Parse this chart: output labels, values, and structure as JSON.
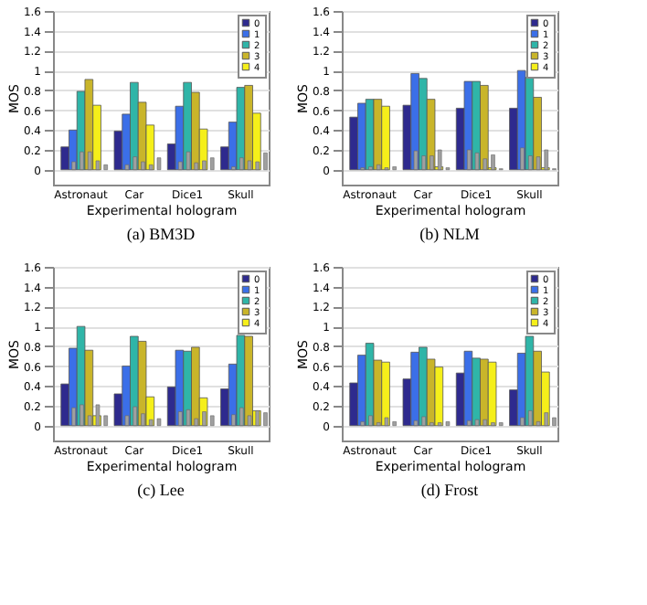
{
  "chart_data": [
    {
      "type": "bar",
      "title": "(a) BM3D",
      "xlabel": "Experimental hologram",
      "ylabel": "MOS",
      "categories": [
        "Astronaut",
        "Car",
        "Dice1",
        "Skull"
      ],
      "ylim": [
        -0.15,
        1.6
      ],
      "yticks": [
        0,
        0.2,
        0.4,
        0.6,
        0.8,
        1,
        1.2,
        1.4,
        1.6
      ],
      "grid": true,
      "legend": "top right",
      "series": [
        {
          "name": "0",
          "color": "#2e2a8e",
          "values": [
            0.23,
            0.39,
            0.26,
            0.23
          ]
        },
        {
          "name": "1",
          "color": "#3b6fe8",
          "values": [
            0.4,
            0.56,
            0.64,
            0.48
          ]
        },
        {
          "name": "2",
          "color": "#2fb5a8",
          "values": [
            0.79,
            0.88,
            0.88,
            0.83
          ]
        },
        {
          "name": "3",
          "color": "#c9b52a",
          "values": [
            0.91,
            0.68,
            0.78,
            0.85
          ]
        },
        {
          "name": "4",
          "color": "#f5ef1a",
          "values": [
            0.65,
            0.45,
            0.41,
            0.57
          ]
        },
        {
          "color": "#a0a0a0",
          "values": [
            0.08,
            0.05,
            0.08,
            0.03
          ]
        },
        {
          "color": "#a0a0a0",
          "values": [
            0.18,
            0.13,
            0.18,
            0.12
          ]
        },
        {
          "color": "#a0a0a0",
          "values": [
            0.18,
            0.08,
            0.07,
            0.09
          ]
        },
        {
          "color": "#a0a0a0",
          "values": [
            0.09,
            0.05,
            0.09,
            0.08
          ]
        },
        {
          "color": "#a0a0a0",
          "values": [
            0.05,
            0.12,
            0.12,
            0.17
          ]
        }
      ]
    },
    {
      "type": "bar",
      "title": "(b) NLM",
      "xlabel": "Experimental hologram",
      "ylabel": "MOS",
      "categories": [
        "Astronaut",
        "Car",
        "Dice1",
        "Skull"
      ],
      "ylim": [
        -0.15,
        1.6
      ],
      "yticks": [
        0,
        0.2,
        0.4,
        0.6,
        0.8,
        1,
        1.2,
        1.4,
        1.6
      ],
      "grid": true,
      "legend": "top right",
      "series": [
        {
          "name": "0",
          "color": "#2e2a8e",
          "values": [
            0.53,
            0.65,
            0.62,
            0.62
          ]
        },
        {
          "name": "1",
          "color": "#3b6fe8",
          "values": [
            0.67,
            0.97,
            0.89,
            1.0
          ]
        },
        {
          "name": "2",
          "color": "#2fb5a8",
          "values": [
            0.71,
            0.92,
            0.89,
            0.93
          ]
        },
        {
          "name": "3",
          "color": "#c9b52a",
          "values": [
            0.71,
            0.71,
            0.85,
            0.73
          ]
        },
        {
          "name": "4",
          "color": "#f5ef1a",
          "values": [
            0.64,
            0.03,
            0.02,
            0.02
          ]
        },
        {
          "color": "#a0a0a0",
          "values": [
            0.02,
            0.19,
            0.2,
            0.22
          ]
        },
        {
          "color": "#a0a0a0",
          "values": [
            0.03,
            0.14,
            0.17,
            0.14
          ]
        },
        {
          "color": "#a0a0a0",
          "values": [
            0.05,
            0.14,
            0.11,
            0.13
          ]
        },
        {
          "color": "#a0a0a0",
          "values": [
            0.02,
            0.2,
            0.15,
            0.2
          ]
        },
        {
          "color": "#a0a0a0",
          "values": [
            0.03,
            0.02,
            0.01,
            0.01
          ]
        }
      ]
    },
    {
      "type": "bar",
      "title": "(c) Lee",
      "xlabel": "Experimental hologram",
      "ylabel": "MOS",
      "categories": [
        "Astronaut",
        "Car",
        "Dice1",
        "Skull"
      ],
      "ylim": [
        -0.15,
        1.6
      ],
      "yticks": [
        0,
        0.2,
        0.4,
        0.6,
        0.8,
        1,
        1.2,
        1.4,
        1.6
      ],
      "grid": true,
      "legend": "top right",
      "series": [
        {
          "name": "0",
          "color": "#2e2a8e",
          "values": [
            0.42,
            0.32,
            0.39,
            0.37
          ]
        },
        {
          "name": "1",
          "color": "#3b6fe8",
          "values": [
            0.78,
            0.6,
            0.76,
            0.62
          ]
        },
        {
          "name": "2",
          "color": "#2fb5a8",
          "values": [
            1.0,
            0.9,
            0.75,
            0.91
          ]
        },
        {
          "name": "3",
          "color": "#c9b52a",
          "values": [
            0.76,
            0.85,
            0.79,
            0.9
          ]
        },
        {
          "name": "4",
          "color": "#f5ef1a",
          "values": [
            0.1,
            0.29,
            0.28,
            0.15
          ]
        },
        {
          "color": "#a0a0a0",
          "values": [
            0.18,
            0.1,
            0.14,
            0.11
          ]
        },
        {
          "color": "#a0a0a0",
          "values": [
            0.21,
            0.19,
            0.16,
            0.18
          ]
        },
        {
          "color": "#a0a0a0",
          "values": [
            0.1,
            0.12,
            0.07,
            0.1
          ]
        },
        {
          "color": "#a0a0a0",
          "values": [
            0.21,
            0.06,
            0.14,
            0.15
          ]
        },
        {
          "color": "#a0a0a0",
          "values": [
            0.1,
            0.07,
            0.1,
            0.13
          ]
        }
      ]
    },
    {
      "type": "bar",
      "title": "(d) Frost",
      "xlabel": "Experimental hologram",
      "ylabel": "MOS",
      "categories": [
        "Astronaut",
        "Car",
        "Dice1",
        "Skull"
      ],
      "ylim": [
        -0.15,
        1.6
      ],
      "yticks": [
        0,
        0.2,
        0.4,
        0.6,
        0.8,
        1,
        1.2,
        1.4,
        1.6
      ],
      "grid": true,
      "legend": "top right",
      "series": [
        {
          "name": "0",
          "color": "#2e2a8e",
          "values": [
            0.43,
            0.47,
            0.53,
            0.36
          ]
        },
        {
          "name": "1",
          "color": "#3b6fe8",
          "values": [
            0.71,
            0.74,
            0.75,
            0.73
          ]
        },
        {
          "name": "2",
          "color": "#2fb5a8",
          "values": [
            0.83,
            0.79,
            0.68,
            0.9
          ]
        },
        {
          "name": "3",
          "color": "#c9b52a",
          "values": [
            0.66,
            0.67,
            0.67,
            0.75
          ]
        },
        {
          "name": "4",
          "color": "#f5ef1a",
          "values": [
            0.64,
            0.59,
            0.64,
            0.54
          ]
        },
        {
          "color": "#a0a0a0",
          "values": [
            0.04,
            0.05,
            0.05,
            0.08
          ]
        },
        {
          "color": "#a0a0a0",
          "values": [
            0.1,
            0.09,
            0.06,
            0.15
          ]
        },
        {
          "color": "#a0a0a0",
          "values": [
            0.03,
            0.03,
            0.06,
            0.04
          ]
        },
        {
          "color": "#a0a0a0",
          "values": [
            0.08,
            0.03,
            0.03,
            0.13
          ]
        },
        {
          "color": "#a0a0a0",
          "values": [
            0.04,
            0.04,
            0.03,
            0.08
          ]
        }
      ]
    }
  ]
}
